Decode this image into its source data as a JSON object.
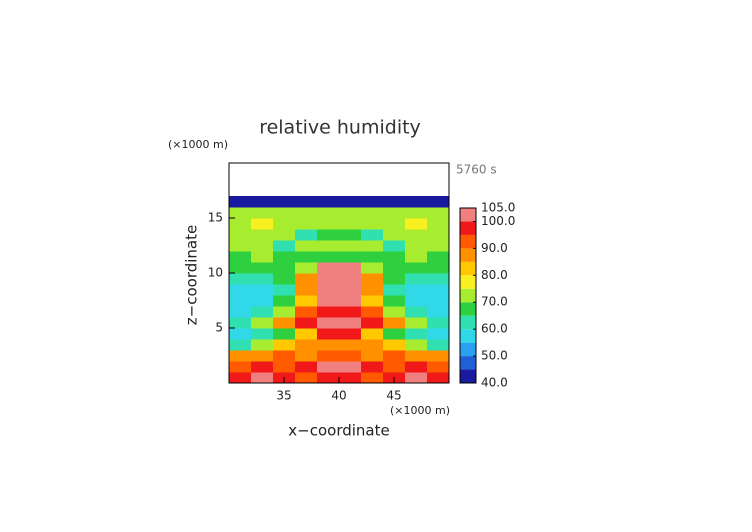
{
  "chart_data": {
    "type": "heatmap",
    "title": "relative humidity",
    "x_label": "x−coordinate",
    "y_label": "z−coordinate",
    "x_unit": "(×1000 m)",
    "y_unit": "(×1000 m)",
    "time_label": "5760 s",
    "xlim": [
      30,
      50
    ],
    "ylim": [
      0,
      20
    ],
    "xticks": [
      35,
      40,
      45
    ],
    "yticks": [
      5,
      10,
      15
    ],
    "x": [
      31,
      33,
      35,
      37,
      39,
      41,
      43,
      45,
      47,
      49
    ],
    "y": [
      0.5,
      1.5,
      2.5,
      3.5,
      4.5,
      5.5,
      6.5,
      7.5,
      8.5,
      9.5,
      10.5,
      11.5,
      12.5,
      13.5,
      14.5,
      15.5,
      16.5
    ],
    "z": [
      [
        95,
        100,
        96,
        92,
        98,
        98,
        92,
        96,
        100,
        95
      ],
      [
        92,
        95,
        90,
        95,
        100,
        100,
        95,
        90,
        95,
        92
      ],
      [
        85,
        88,
        92,
        88,
        90,
        90,
        88,
        92,
        88,
        85
      ],
      [
        60,
        70,
        80,
        88,
        85,
        85,
        88,
        80,
        70,
        60
      ],
      [
        55,
        60,
        68,
        80,
        96,
        96,
        80,
        68,
        60,
        55
      ],
      [
        62,
        72,
        85,
        95,
        100,
        100,
        95,
        85,
        72,
        62
      ],
      [
        58,
        62,
        72,
        92,
        98,
        98,
        92,
        72,
        62,
        58
      ],
      [
        55,
        58,
        65,
        80,
        101,
        101,
        80,
        65,
        58,
        55
      ],
      [
        58,
        56,
        62,
        85,
        102,
        102,
        85,
        62,
        56,
        58
      ],
      [
        62,
        60,
        65,
        88,
        103,
        103,
        88,
        65,
        60,
        62
      ],
      [
        66,
        65,
        68,
        72,
        101,
        101,
        72,
        68,
        65,
        66
      ],
      [
        68,
        70,
        66,
        65,
        68,
        68,
        65,
        66,
        70,
        68
      ],
      [
        72,
        70,
        62,
        70,
        74,
        74,
        70,
        62,
        70,
        72
      ],
      [
        74,
        72,
        70,
        64,
        68,
        68,
        64,
        70,
        72,
        74
      ],
      [
        72,
        75,
        72,
        70,
        72,
        72,
        70,
        72,
        75,
        72
      ],
      [
        70,
        72,
        74,
        72,
        70,
        70,
        72,
        74,
        72,
        70
      ],
      [
        42,
        41,
        42,
        41,
        42,
        42,
        41,
        42,
        41,
        42
      ]
    ],
    "colorbar": {
      "levels": [
        40,
        45,
        50,
        55,
        60,
        65,
        70,
        75,
        80,
        85,
        90,
        95,
        100,
        105
      ],
      "colors": [
        "#1a1aa0",
        "#1f5fd8",
        "#2aa0f0",
        "#30d8e8",
        "#30e0b0",
        "#2ed040",
        "#a8ec30",
        "#f8f020",
        "#ffc800",
        "#ff9000",
        "#ff5a00",
        "#f01818",
        "#f08080"
      ],
      "ticks": [
        {
          "value": 105,
          "label": "105.0"
        },
        {
          "value": 100,
          "label": "100.0"
        },
        {
          "value": 90,
          "label": "90.0"
        },
        {
          "value": 80,
          "label": "80.0"
        },
        {
          "value": 70,
          "label": "70.0"
        },
        {
          "value": 60,
          "label": "60.0"
        },
        {
          "value": 50,
          "label": "50.0"
        },
        {
          "value": 40,
          "label": "40.0"
        }
      ]
    }
  }
}
